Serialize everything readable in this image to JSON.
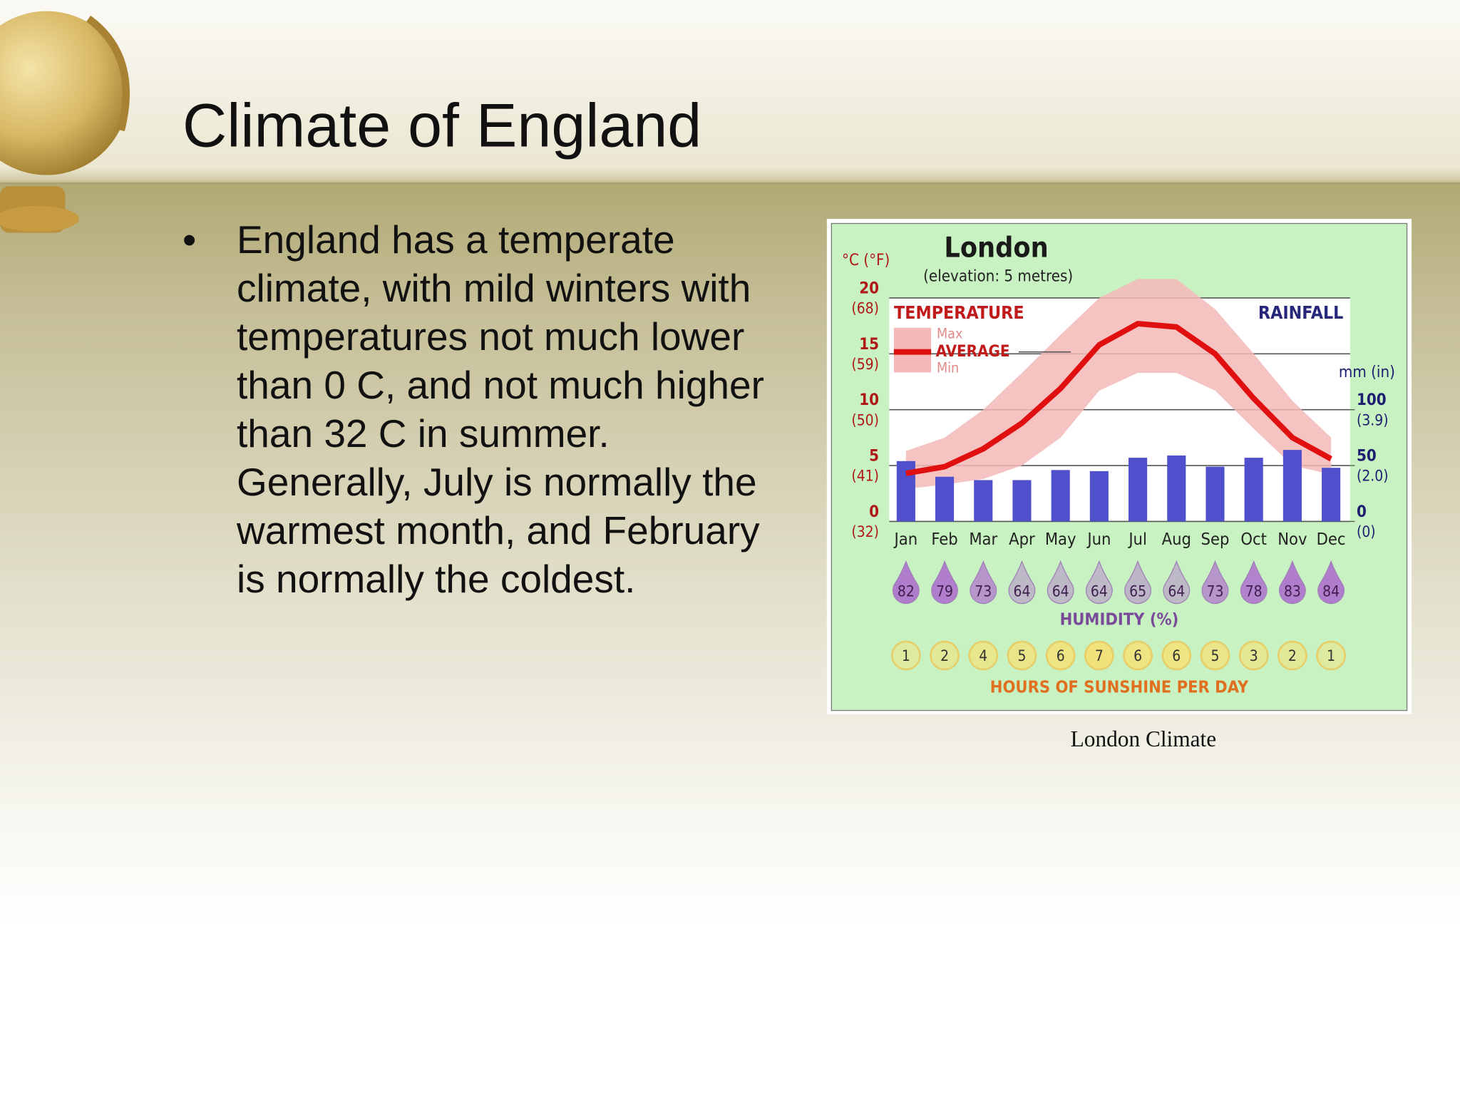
{
  "slide": {
    "title": "Climate of England",
    "bullets": [
      "England has a temperate climate, with mild winters with temperatures not much lower than 0 C, and not much higher than 32 C in summer. Generally, July is normally the warmest month, and February is normally the coldest."
    ],
    "caption": "London Climate"
  },
  "chart_data": {
    "type": "bar",
    "title": "London",
    "subtitle": "(elevation: 5 metres)",
    "temperature_label": "TEMPERATURE",
    "rainfall_label": "RAINFALL",
    "ylabel": "°C (°F)",
    "y2label": "mm (in)",
    "categories": [
      "Jan",
      "Feb",
      "Mar",
      "Apr",
      "May",
      "Jun",
      "Jul",
      "Aug",
      "Sep",
      "Oct",
      "Nov",
      "Dec"
    ],
    "series": [
      {
        "name": "RAINFALL",
        "color": "#5050cc",
        "axis": "y2",
        "values": [
          54,
          40,
          37,
          37,
          46,
          45,
          57,
          59,
          49,
          57,
          64,
          48
        ]
      },
      {
        "name": "AVERAGE",
        "color": "#e01010",
        "values": [
          4.3,
          4.9,
          6.5,
          8.8,
          11.9,
          15.8,
          17.7,
          17.4,
          15,
          11,
          7.5,
          5.6
        ]
      },
      {
        "name": "Max",
        "color": "#f5b8b8",
        "values": [
          6.3,
          7.5,
          10,
          13.3,
          16.7,
          20,
          21.7,
          21.7,
          19,
          15,
          10.8,
          7.5
        ]
      },
      {
        "name": "Min",
        "color": "#f5b8b8",
        "values": [
          2.9,
          3.3,
          3.8,
          5,
          7.5,
          11.7,
          13.3,
          13.3,
          11.7,
          8.3,
          5,
          4.2
        ]
      }
    ],
    "ylim": [
      0,
      22
    ],
    "yticks": [
      0,
      5,
      10,
      15,
      20
    ],
    "ytick_alt_labels": [
      "(32)",
      "(41)",
      "(50)",
      "(59)",
      "(68)"
    ],
    "y2lim": [
      0,
      220
    ],
    "y2ticks": [
      0,
      50,
      100
    ],
    "y2tick_alt_labels": [
      "(0)",
      "(2.0)",
      "(3.9)"
    ],
    "grid": true,
    "humidity": {
      "label": "HUMIDITY (%)",
      "color": "#b07ccc",
      "values": [
        82,
        79,
        73,
        64,
        64,
        64,
        65,
        64,
        73,
        78,
        83,
        84
      ]
    },
    "sunshine": {
      "label": "HOURS OF SUNSHINE PER DAY",
      "color": "#f2e27a",
      "values": [
        1,
        2,
        4,
        5,
        6,
        7,
        6,
        6,
        5,
        3,
        2,
        1
      ]
    }
  }
}
